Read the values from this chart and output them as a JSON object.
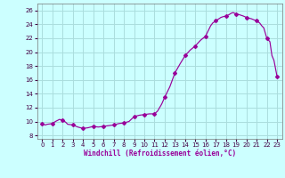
{
  "full_x": [
    0,
    0.3,
    0.5,
    1,
    1.3,
    1.7,
    2,
    2.3,
    2.5,
    3,
    3.5,
    4,
    4.5,
    5,
    5.5,
    6,
    6.5,
    7,
    7.5,
    8,
    8.5,
    9,
    9.5,
    10,
    10.5,
    11,
    11.3,
    11.7,
    12,
    12.5,
    13,
    13.5,
    14,
    14.5,
    15,
    15.5,
    16,
    16.3,
    16.5,
    16.7,
    17,
    17.3,
    17.5,
    17.7,
    18,
    18.3,
    18.5,
    18.7,
    19,
    19.3,
    19.5,
    19.7,
    20,
    20.5,
    21,
    21.3,
    21.5,
    21.7,
    22,
    22.3,
    22.5,
    22.7,
    23
  ],
  "full_y": [
    9.7,
    9.5,
    9.6,
    9.7,
    10.0,
    10.3,
    10.2,
    9.9,
    9.6,
    9.5,
    9.2,
    9.0,
    9.1,
    9.3,
    9.2,
    9.3,
    9.4,
    9.5,
    9.7,
    9.8,
    10.0,
    10.7,
    10.9,
    11.0,
    11.1,
    11.1,
    11.5,
    12.5,
    13.5,
    15.0,
    17.0,
    18.3,
    19.5,
    20.3,
    20.9,
    21.7,
    22.3,
    23.2,
    23.8,
    24.2,
    24.5,
    24.8,
    25.0,
    25.1,
    25.2,
    25.4,
    25.6,
    25.7,
    25.5,
    25.4,
    25.3,
    25.2,
    25.0,
    24.8,
    24.5,
    24.2,
    23.8,
    23.5,
    22.0,
    21.5,
    19.5,
    18.8,
    16.5
  ],
  "marker_x": [
    0,
    1,
    2,
    3,
    4,
    5,
    6,
    7,
    8,
    9,
    10,
    11,
    12,
    13,
    14,
    15,
    16,
    17,
    18,
    19,
    20,
    21,
    22,
    23
  ],
  "marker_y": [
    9.7,
    9.7,
    10.2,
    9.5,
    9.0,
    9.3,
    9.3,
    9.5,
    9.8,
    10.7,
    11.0,
    11.1,
    13.5,
    17.0,
    19.5,
    20.9,
    22.3,
    24.5,
    25.2,
    25.5,
    25.0,
    24.5,
    22.0,
    16.5
  ],
  "line_color": "#990099",
  "marker_color": "#990099",
  "bg_color": "#ccffff",
  "grid_color": "#aadddd",
  "xlabel": "Windchill (Refroidissement éolien,°C)",
  "xticks": [
    0,
    1,
    2,
    3,
    4,
    5,
    6,
    7,
    8,
    9,
    10,
    11,
    12,
    13,
    14,
    15,
    16,
    17,
    18,
    19,
    20,
    21,
    22,
    23
  ],
  "yticks": [
    8,
    10,
    12,
    14,
    16,
    18,
    20,
    22,
    24,
    26
  ],
  "ylim": [
    7.5,
    27.0
  ],
  "xlim": [
    -0.5,
    23.5
  ]
}
